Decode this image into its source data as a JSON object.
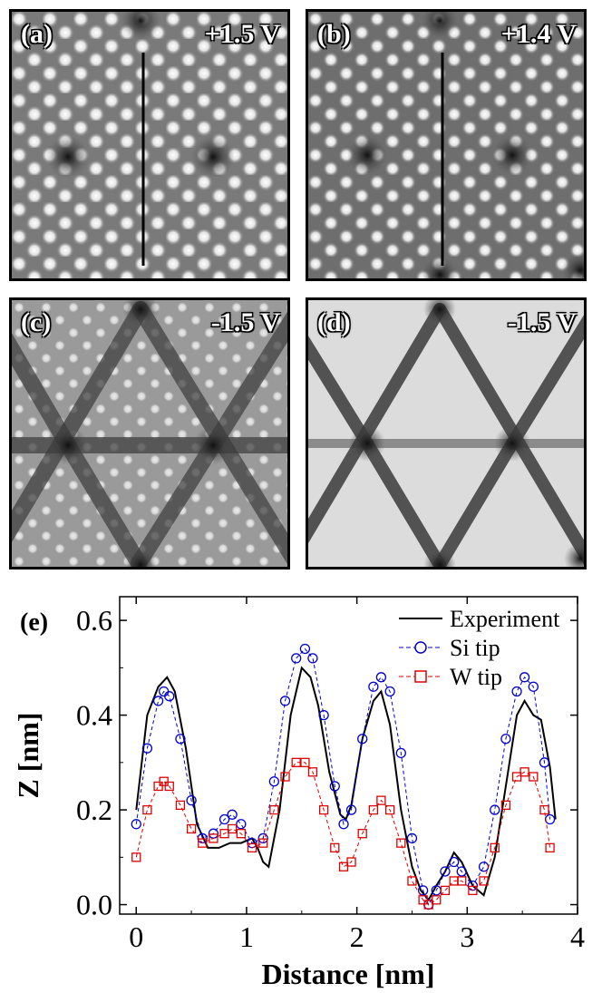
{
  "panels": [
    {
      "label": "(a)",
      "voltage": "+1.5 V"
    },
    {
      "label": "(b)",
      "voltage": "+1.4 V"
    },
    {
      "label": "(c)",
      "voltage": "-1.5 V"
    },
    {
      "label": "(d)",
      "voltage": "-1.5 V"
    }
  ],
  "chart_data": {
    "type": "line",
    "panel_label": "(e)",
    "xlabel": "Distance [nm]",
    "ylabel": "Z [nm]",
    "xlim": [
      -0.15,
      4.0
    ],
    "ylim": [
      -0.02,
      0.65
    ],
    "xticks": [
      0,
      1,
      2,
      3,
      4
    ],
    "yticks": [
      0.0,
      0.2,
      0.4,
      0.6
    ],
    "ytick_labels": [
      "0.0",
      "0.2",
      "0.4",
      "0.6"
    ],
    "legend_position": "top-right",
    "series": [
      {
        "name": "Experiment",
        "style": "line",
        "color": "#000000",
        "x": [
          0.0,
          0.1,
          0.2,
          0.28,
          0.35,
          0.45,
          0.55,
          0.65,
          0.75,
          0.85,
          0.95,
          1.05,
          1.1,
          1.15,
          1.2,
          1.3,
          1.4,
          1.5,
          1.58,
          1.65,
          1.75,
          1.85,
          1.9,
          1.95,
          2.05,
          2.15,
          2.22,
          2.3,
          2.4,
          2.5,
          2.58,
          2.65,
          2.72,
          2.8,
          2.88,
          2.95,
          3.05,
          3.15,
          3.25,
          3.35,
          3.45,
          3.52,
          3.6,
          3.67,
          3.75,
          3.8
        ],
        "y": [
          0.2,
          0.4,
          0.46,
          0.48,
          0.45,
          0.33,
          0.17,
          0.12,
          0.12,
          0.13,
          0.13,
          0.14,
          0.12,
          0.09,
          0.08,
          0.2,
          0.4,
          0.5,
          0.48,
          0.42,
          0.28,
          0.19,
          0.18,
          0.21,
          0.35,
          0.43,
          0.45,
          0.38,
          0.2,
          0.08,
          0.03,
          0.01,
          0.04,
          0.07,
          0.11,
          0.09,
          0.04,
          0.02,
          0.1,
          0.25,
          0.4,
          0.43,
          0.4,
          0.39,
          0.29,
          0.18
        ]
      },
      {
        "name": "Si tip",
        "style": "circles",
        "color": "#0000cc",
        "x": [
          0.0,
          0.1,
          0.2,
          0.25,
          0.3,
          0.4,
          0.5,
          0.6,
          0.7,
          0.8,
          0.87,
          0.95,
          1.05,
          1.15,
          1.25,
          1.35,
          1.45,
          1.53,
          1.6,
          1.7,
          1.8,
          1.88,
          1.95,
          2.05,
          2.15,
          2.22,
          2.3,
          2.4,
          2.5,
          2.6,
          2.65,
          2.72,
          2.8,
          2.88,
          2.95,
          3.05,
          3.15,
          3.25,
          3.35,
          3.45,
          3.52,
          3.6,
          3.7,
          3.75
        ],
        "y": [
          0.17,
          0.33,
          0.43,
          0.45,
          0.44,
          0.35,
          0.22,
          0.14,
          0.15,
          0.18,
          0.19,
          0.17,
          0.13,
          0.14,
          0.26,
          0.43,
          0.52,
          0.54,
          0.52,
          0.4,
          0.25,
          0.17,
          0.2,
          0.35,
          0.46,
          0.48,
          0.45,
          0.32,
          0.14,
          0.03,
          0.0,
          0.03,
          0.07,
          0.09,
          0.07,
          0.04,
          0.08,
          0.2,
          0.35,
          0.45,
          0.48,
          0.46,
          0.3,
          0.18
        ]
      },
      {
        "name": "W tip",
        "style": "squares",
        "color": "#dd0000",
        "x": [
          0.0,
          0.1,
          0.2,
          0.25,
          0.3,
          0.4,
          0.5,
          0.6,
          0.7,
          0.8,
          0.87,
          0.95,
          1.05,
          1.15,
          1.25,
          1.35,
          1.45,
          1.53,
          1.6,
          1.7,
          1.8,
          1.88,
          1.95,
          2.05,
          2.15,
          2.22,
          2.3,
          2.4,
          2.5,
          2.6,
          2.65,
          2.72,
          2.8,
          2.88,
          2.95,
          3.05,
          3.15,
          3.25,
          3.35,
          3.45,
          3.52,
          3.6,
          3.7,
          3.75
        ],
        "y": [
          0.1,
          0.2,
          0.25,
          0.26,
          0.25,
          0.21,
          0.16,
          0.13,
          0.14,
          0.15,
          0.16,
          0.15,
          0.12,
          0.13,
          0.2,
          0.27,
          0.3,
          0.3,
          0.28,
          0.2,
          0.12,
          0.08,
          0.09,
          0.15,
          0.2,
          0.22,
          0.2,
          0.13,
          0.05,
          0.01,
          0.0,
          0.01,
          0.03,
          0.05,
          0.05,
          0.03,
          0.05,
          0.12,
          0.21,
          0.27,
          0.28,
          0.27,
          0.2,
          0.12
        ]
      }
    ]
  }
}
